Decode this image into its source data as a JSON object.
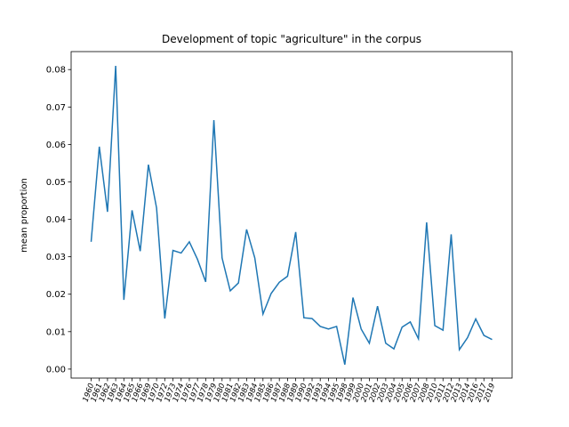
{
  "chart_data": {
    "type": "line",
    "title": "Development of topic \"agriculture\" in the corpus",
    "y_label": "mean proportion",
    "categories": [
      "1960",
      "1961",
      "1962",
      "1963",
      "1964",
      "1965",
      "1966",
      "1969",
      "1970",
      "1972",
      "1973",
      "1974",
      "1976",
      "1977",
      "1978",
      "1979",
      "1980",
      "1981",
      "1982",
      "1983",
      "1984",
      "1985",
      "1986",
      "1987",
      "1988",
      "1989",
      "1990",
      "1992",
      "1993",
      "1994",
      "1995",
      "1998",
      "1999",
      "2000",
      "2001",
      "2002",
      "2003",
      "2004",
      "2005",
      "2006",
      "2007",
      "2008",
      "2010",
      "2011",
      "2012",
      "2013",
      "2014",
      "2016",
      "2017",
      "2019"
    ],
    "series": [
      {
        "name": "agriculture",
        "color": "#1f77b4",
        "values": [
          0.034,
          0.0594,
          0.042,
          0.081,
          0.0185,
          0.0424,
          0.0315,
          0.0546,
          0.043,
          0.0135,
          0.0317,
          0.031,
          0.034,
          0.0293,
          0.0233,
          0.0665,
          0.0297,
          0.0209,
          0.023,
          0.0373,
          0.0297,
          0.0147,
          0.0202,
          0.0232,
          0.0248,
          0.0366,
          0.0137,
          0.0135,
          0.0114,
          0.0107,
          0.0114,
          0.0012,
          0.0191,
          0.0107,
          0.0069,
          0.0168,
          0.0069,
          0.0054,
          0.0112,
          0.0126,
          0.0081,
          0.0392,
          0.0116,
          0.0104,
          0.036,
          0.0052,
          0.0084,
          0.0134,
          0.009,
          0.0079
        ]
      }
    ],
    "ylim": [
      -0.0024,
      0.0848
    ],
    "yticks": [
      {
        "value": 0,
        "label": "0.00"
      },
      0.01,
      0.02,
      0.03,
      0.04,
      0.05,
      0.06,
      0.07,
      0.08
    ]
  }
}
